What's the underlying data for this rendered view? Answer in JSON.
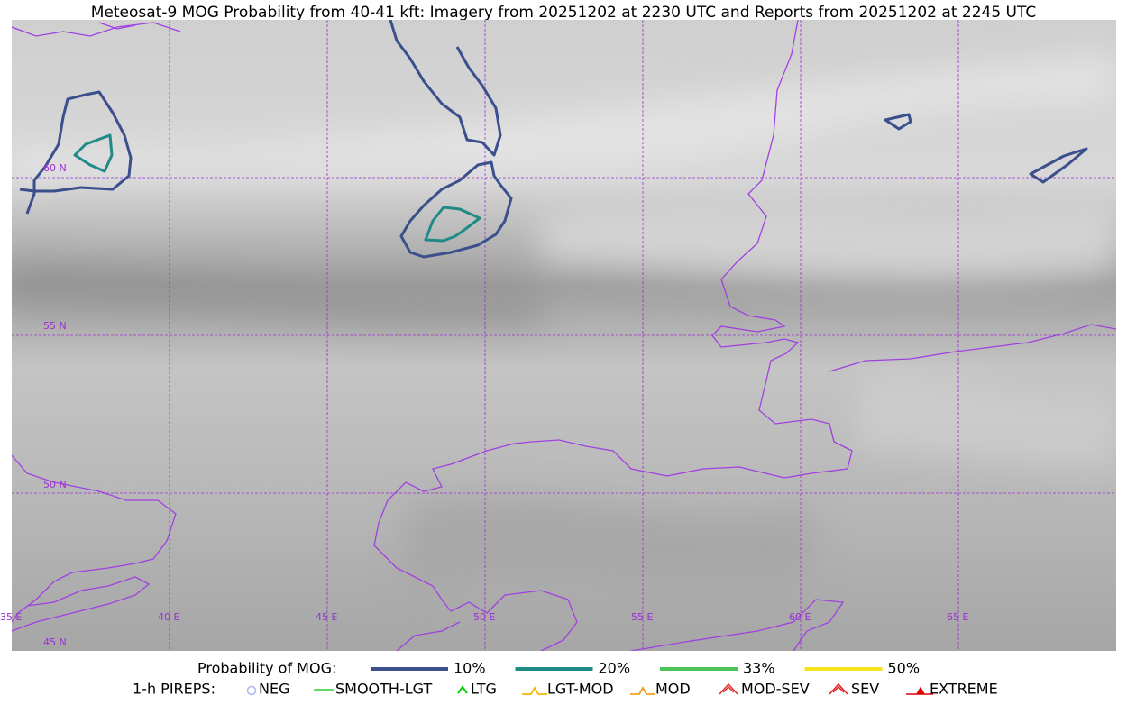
{
  "title": "Meteosat-9 MOG Probability from 40-41 kft: Imagery from 20251202 at 2230 UTC and Reports from 20251202 at 2245 UTC",
  "grid_labels": {
    "lat": [
      "60 N",
      "55 N",
      "50 N",
      "45 N"
    ],
    "lon": [
      "35 E",
      "40 E",
      "45 E",
      "50 E",
      "55 E",
      "60 E",
      "65 E"
    ]
  },
  "legend": {
    "probability_title": "Probability of MOG:",
    "probability_levels": [
      {
        "label": "10%",
        "color": "#3a4f8c"
      },
      {
        "label": "20%",
        "color": "#1f8a86"
      },
      {
        "label": "33%",
        "color": "#4cc45a"
      },
      {
        "label": "50%",
        "color": "#f5e11c"
      }
    ],
    "pireps_title": "1-h PIREPS:",
    "pireps": [
      {
        "label": "NEG",
        "color": "#b0b4f0"
      },
      {
        "label": "SMOOTH-LGT",
        "color": "#33cc33"
      },
      {
        "label": "LTG",
        "color": "#00d000"
      },
      {
        "label": "LGT-MOD",
        "color": "#f5b800"
      },
      {
        "label": "MOD",
        "color": "#f0a020"
      },
      {
        "label": "MOD-SEV",
        "color": "#e03030"
      },
      {
        "label": "SEV",
        "color": "#e02020"
      },
      {
        "label": "EXTREME",
        "color": "#e00000"
      }
    ]
  }
}
